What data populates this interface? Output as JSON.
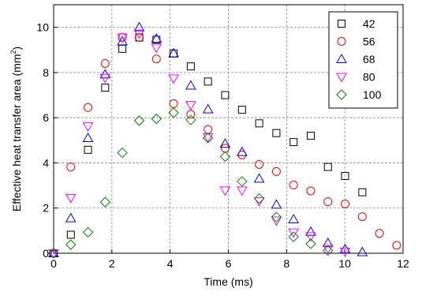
{
  "chart_data": {
    "type": "scatter",
    "title": "",
    "xlabel": "Time (ms)",
    "ylabel_main": "Effective heat transfer area (mm",
    "ylabel_sup": "2",
    "ylabel_close": ")",
    "xlim": [
      0,
      12
    ],
    "ylim": [
      0,
      11
    ],
    "xticks": [
      0,
      2,
      4,
      6,
      8,
      10,
      12
    ],
    "yticks": [
      0,
      2,
      4,
      6,
      8,
      10
    ],
    "xtick_labels": [
      "0",
      "2",
      "4",
      "6",
      "8",
      "10",
      "12"
    ],
    "ytick_labels": [
      "0",
      "2",
      "4",
      "6",
      "8",
      "10"
    ],
    "grid": true,
    "legend_position": "top-right",
    "series": [
      {
        "name": "42",
        "marker": "square",
        "color": "#000000",
        "points": [
          [
            0.0,
            0.0
          ],
          [
            0.59,
            0.82
          ],
          [
            1.18,
            4.58
          ],
          [
            1.77,
            7.33
          ],
          [
            2.36,
            9.05
          ],
          [
            2.94,
            9.55
          ],
          [
            3.53,
            9.45
          ],
          [
            4.12,
            8.84
          ],
          [
            4.71,
            8.27
          ],
          [
            5.3,
            7.6
          ],
          [
            5.89,
            7.0
          ],
          [
            6.47,
            6.35
          ],
          [
            7.06,
            5.75
          ],
          [
            7.65,
            5.32
          ],
          [
            8.24,
            4.92
          ],
          [
            8.83,
            5.2
          ],
          [
            9.42,
            3.82
          ],
          [
            10.01,
            3.42
          ],
          [
            10.6,
            2.7
          ]
        ]
      },
      {
        "name": "56",
        "marker": "circle",
        "color": "#ff0000",
        "points": [
          [
            0.0,
            0.0
          ],
          [
            0.59,
            3.82
          ],
          [
            1.18,
            6.45
          ],
          [
            1.77,
            8.4
          ],
          [
            2.36,
            9.55
          ],
          [
            2.94,
            9.55
          ],
          [
            3.53,
            8.6
          ],
          [
            4.12,
            6.62
          ],
          [
            4.71,
            6.15
          ],
          [
            5.3,
            5.48
          ],
          [
            5.89,
            4.65
          ],
          [
            6.47,
            4.35
          ],
          [
            7.06,
            3.93
          ],
          [
            7.65,
            3.62
          ],
          [
            8.24,
            3.02
          ],
          [
            8.83,
            2.76
          ],
          [
            9.42,
            2.28
          ],
          [
            10.01,
            2.18
          ],
          [
            10.6,
            1.62
          ],
          [
            11.19,
            0.88
          ],
          [
            11.78,
            0.35
          ]
        ]
      },
      {
        "name": "68",
        "marker": "triangle-up",
        "color": "#0000ff",
        "points": [
          [
            0.0,
            0.0
          ],
          [
            0.59,
            1.55
          ],
          [
            1.18,
            5.1
          ],
          [
            1.77,
            7.92
          ],
          [
            2.36,
            9.38
          ],
          [
            2.94,
            10.0
          ],
          [
            3.53,
            9.5
          ],
          [
            4.12,
            8.85
          ],
          [
            4.71,
            7.42
          ],
          [
            5.3,
            6.37
          ],
          [
            5.89,
            4.85
          ],
          [
            6.47,
            4.48
          ],
          [
            7.06,
            3.3
          ],
          [
            7.65,
            2.15
          ],
          [
            8.24,
            1.5
          ],
          [
            8.83,
            0.95
          ],
          [
            9.42,
            0.45
          ],
          [
            10.01,
            0.18
          ],
          [
            10.6,
            0.05
          ]
        ]
      },
      {
        "name": "80",
        "marker": "triangle-down",
        "color": "#ff00ff",
        "points": [
          [
            0.0,
            0.0
          ],
          [
            0.59,
            2.45
          ],
          [
            1.18,
            5.62
          ],
          [
            1.77,
            7.76
          ],
          [
            2.36,
            9.55
          ],
          [
            2.94,
            9.72
          ],
          [
            3.53,
            9.1
          ],
          [
            4.12,
            7.74
          ],
          [
            4.71,
            6.56
          ],
          [
            5.3,
            5.13
          ],
          [
            5.89,
            2.78
          ],
          [
            6.47,
            2.78
          ],
          [
            7.06,
            2.3
          ],
          [
            7.65,
            1.45
          ],
          [
            8.24,
            0.92
          ],
          [
            8.83,
            0.75
          ],
          [
            9.42,
            0.2
          ],
          [
            10.01,
            0.07
          ]
        ]
      },
      {
        "name": "100",
        "marker": "diamond",
        "color": "#008000",
        "points": [
          [
            0.0,
            0.0
          ],
          [
            0.59,
            0.38
          ],
          [
            1.18,
            0.93
          ],
          [
            1.77,
            2.26
          ],
          [
            2.36,
            4.45
          ],
          [
            2.94,
            5.87
          ],
          [
            3.53,
            5.95
          ],
          [
            4.12,
            6.22
          ],
          [
            4.71,
            5.9
          ],
          [
            5.3,
            5.1
          ],
          [
            5.89,
            4.28
          ],
          [
            6.47,
            3.18
          ],
          [
            7.06,
            2.42
          ],
          [
            7.65,
            1.6
          ],
          [
            8.24,
            0.73
          ],
          [
            8.83,
            0.42
          ],
          [
            9.42,
            0.12
          ]
        ]
      }
    ]
  }
}
